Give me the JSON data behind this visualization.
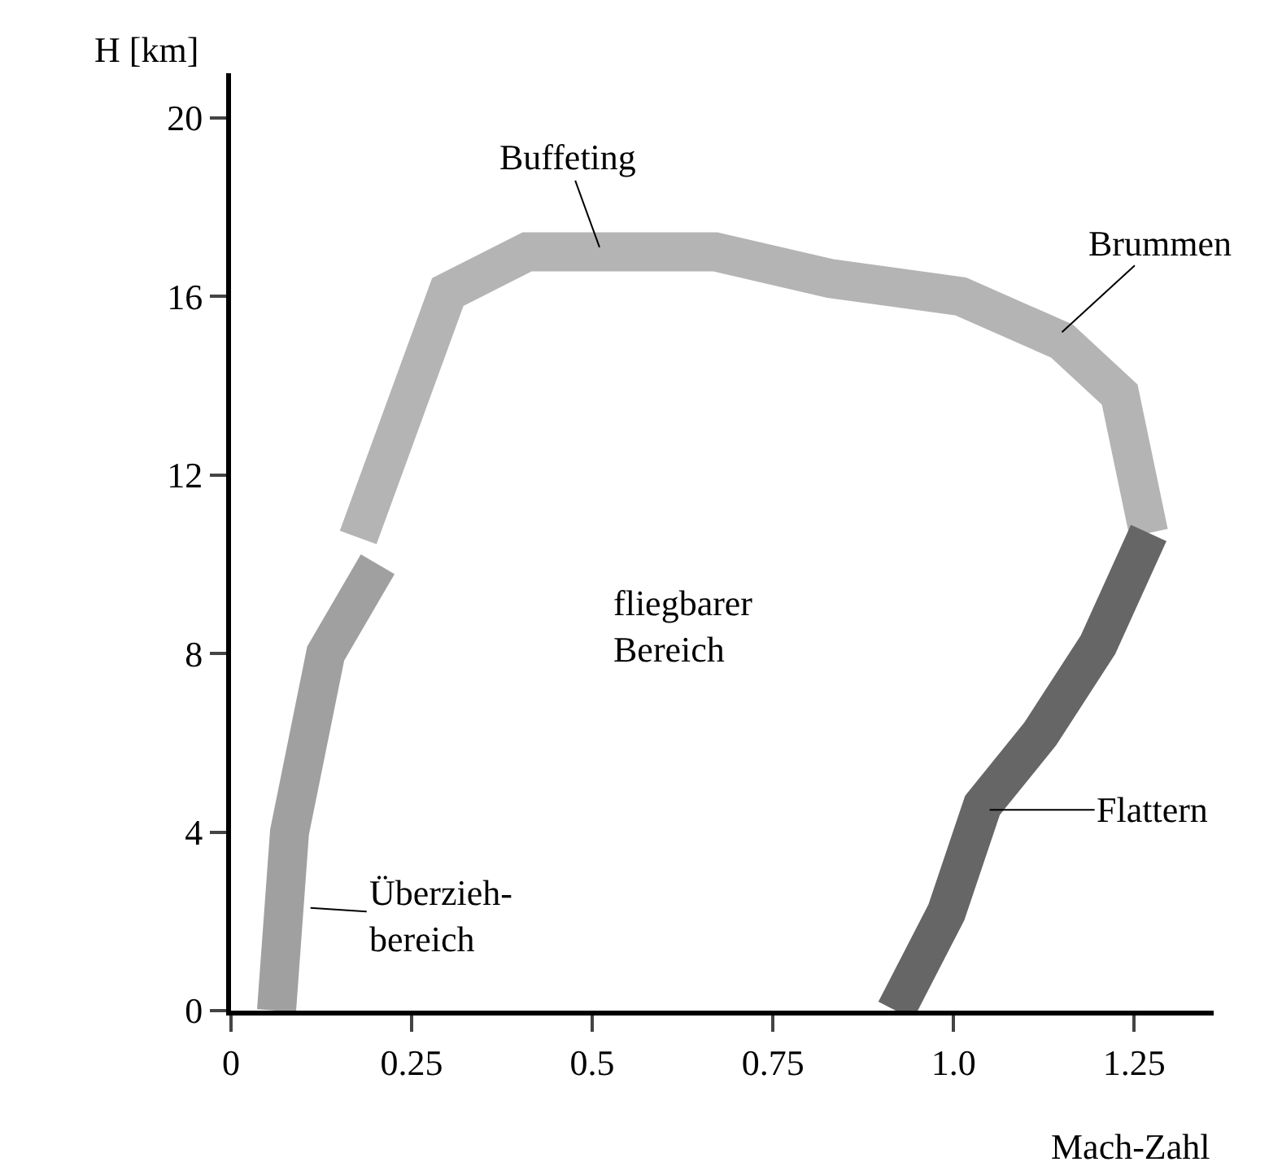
{
  "chart_data": {
    "type": "line",
    "xlabel": "Mach-Zahl",
    "ylabel": "H [km]",
    "xlim": [
      0,
      1.36
    ],
    "ylim": [
      0,
      21
    ],
    "xticks": [
      0,
      0.25,
      0.5,
      0.75,
      {
        "value": 1,
        "label": "1.0"
      },
      1.25
    ],
    "yticks": [
      0,
      4,
      8,
      12,
      16,
      20
    ],
    "marker": "none",
    "line_style": "solid",
    "series": [
      {
        "color": "#a0a0a0",
        "x": [
          0.063,
          0.081,
          0.131,
          0.203
        ],
        "values": [
          0,
          4,
          8,
          10
        ]
      },
      {
        "color": "#b4b4b4",
        "x": [
          0.176,
          0.3,
          0.41,
          0.67,
          0.83,
          1.01,
          1.15,
          1.23,
          1.27
        ],
        "values": [
          10.6,
          16.1,
          17.0,
          17.0,
          16.4,
          16.0,
          15.0,
          13.8,
          10.7
        ]
      },
      {
        "color": "#666666",
        "x": [
          1.27,
          1.2,
          1.12,
          1.04,
          0.99,
          0.92
        ],
        "values": [
          10.7,
          8.2,
          6.2,
          4.6,
          2.2,
          0
        ]
      }
    ],
    "annotations": [
      {
        "text": "Buffeting",
        "x": 0.51,
        "y": 17.1
      },
      {
        "text": "Brummen",
        "x": 1.15,
        "y": 15.2
      },
      {
        "text": "Flattern",
        "x": 1.05,
        "y": 4.5
      },
      {
        "text": "Überzieh-\nbereich",
        "x": 0.11,
        "y": 2.3
      },
      "fliegbarer\nBereich"
    ]
  }
}
